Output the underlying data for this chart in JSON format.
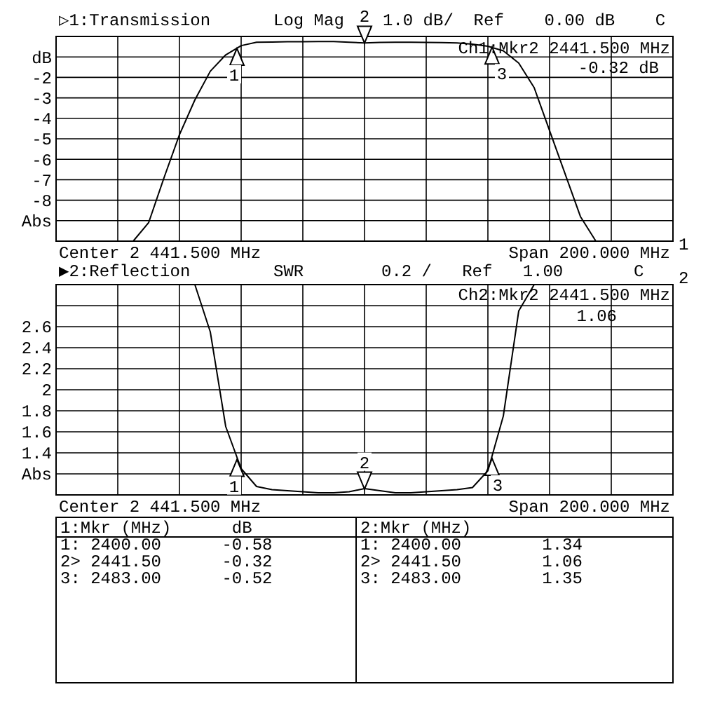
{
  "chart_data": [
    {
      "type": "line",
      "categories": [
        null,
        null,
        null,
        null,
        null,
        null,
        null,
        null,
        null,
        null,
        null,
        null,
        null,
        null,
        null,
        null,
        null,
        null,
        null,
        null,
        null,
        null,
        null,
        null,
        null,
        null,
        null,
        null,
        null,
        null,
        null,
        null,
        null,
        null,
        null,
        null,
        null,
        null,
        null,
        null,
        null
      ],
      "ylim": [
        -10,
        0
      ],
      "yticks": [
        {
          "value": 0,
          "label": null
        },
        {
          "value": -1,
          "label": "dB"
        },
        -2,
        -3,
        -4,
        -5,
        -6,
        -7,
        -8,
        {
          "value": -9,
          "label": "Abs"
        },
        {
          "value": -10,
          "label": null
        }
      ],
      "grid": true,
      "series": [
        {
          "color": "#000000",
          "values": [
            -10,
            -10,
            -10,
            -10,
            -10,
            -10,
            -9.1,
            -6.9,
            -4.8,
            -3.1,
            -1.7,
            -0.9,
            -0.45,
            -0.28,
            -0.27,
            -0.26,
            -0.26,
            -0.25,
            -0.25,
            -0.28,
            -0.32,
            -0.29,
            -0.28,
            -0.28,
            -0.29,
            -0.3,
            -0.32,
            -0.38,
            -0.48,
            -0.7,
            -1.3,
            -2.5,
            -4.6,
            -6.7,
            -8.8,
            -10,
            -10,
            -10,
            -10,
            -10,
            -10
          ]
        }
      ],
      "annotations": [
        "▷1:Transmission",
        "Log Mag",
        "1.0 dB/  Ref    0.00 dB    C",
        "Ch1:Mkr2 2441.500 MHz",
        "-0.32 dB",
        "Center 2 441.500 MHz",
        "Span 200.000 MHz",
        "1",
        "1",
        "2",
        "3"
      ]
    },
    {
      "type": "line",
      "categories": [
        null,
        null,
        null,
        null,
        null,
        null,
        null,
        null,
        null,
        null,
        null,
        null,
        null,
        null,
        null,
        null,
        null,
        null,
        null,
        null,
        null,
        null,
        null,
        null,
        null,
        null,
        null,
        null,
        null,
        null,
        null,
        null,
        null,
        null,
        null,
        null,
        null,
        null,
        null,
        null,
        null
      ],
      "ylim": [
        1,
        3
      ],
      "yticks": [
        {
          "value": 1,
          "label": null
        },
        {
          "value": 1.2,
          "label": "Abs"
        },
        1.4,
        1.6,
        1.8,
        2,
        2.2,
        2.4,
        2.6,
        {
          "value": 2.8,
          "label": null
        },
        {
          "value": 3,
          "label": null
        }
      ],
      "grid": true,
      "series": [
        {
          "color": "#000000",
          "values": [
            3,
            3,
            3,
            3,
            3,
            3,
            3,
            3,
            3,
            3,
            2.55,
            1.65,
            1.25,
            1.08,
            1.05,
            1.04,
            1.03,
            1.02,
            1.02,
            1.03,
            1.06,
            1.04,
            1.02,
            1.02,
            1.03,
            1.04,
            1.05,
            1.07,
            1.23,
            1.75,
            2.75,
            3,
            3,
            3,
            3,
            3,
            3,
            3,
            3,
            3,
            3
          ]
        }
      ],
      "annotations": [
        "▶2:Reflection",
        "SWR",
        "0.2 /   Ref   1.00       C",
        "Ch2:Mkr2 2441.500 MHz",
        "1.06",
        "Center 2 441.500 MHz",
        "Span 200.000 MHz",
        "2",
        "1",
        "2",
        "3"
      ]
    },
    {
      "type": "other",
      "annotations": [
        "1:Mkr (MHz)      dB",
        "1: 2400.00      -0.58",
        "2> 2441.50      -0.32",
        "3: 2483.00      -0.52",
        "2:Mkr (MHz)",
        "1: 2400.00        1.34",
        "2> 2441.50        1.06",
        "3: 2483.00        1.35"
      ]
    }
  ]
}
